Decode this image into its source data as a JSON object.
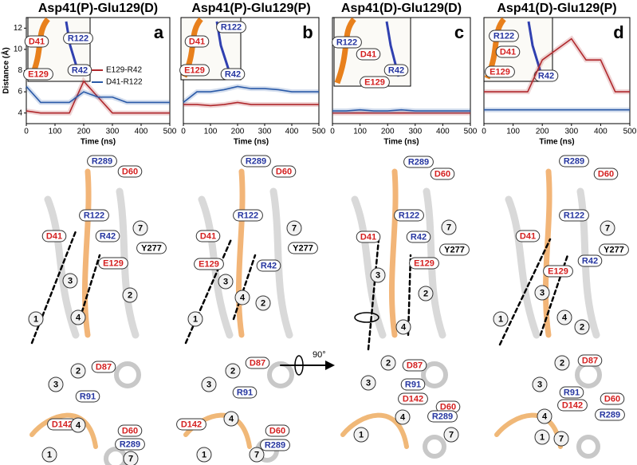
{
  "chart_data": [
    {
      "type": "line",
      "title": "Asp41(P)-Glu129(D)",
      "panel_label": "a",
      "xlabel": "Time (ns)",
      "ylabel": "Distance (Å)",
      "x": [
        0,
        50,
        100,
        150,
        200,
        250,
        300,
        350,
        400,
        450,
        500
      ],
      "series": [
        {
          "name": "E129-R42",
          "color": "#b0282c",
          "values": [
            4.2,
            4,
            4,
            4,
            7,
            5.5,
            4,
            4,
            4,
            4,
            4
          ]
        },
        {
          "name": "D41-R122",
          "color": "#2a5aa8",
          "values": [
            6.5,
            5,
            5,
            5,
            6,
            5.5,
            5.5,
            5,
            5,
            5,
            5
          ]
        }
      ],
      "xlim": [
        0,
        500
      ],
      "xticks": [
        0,
        100,
        200,
        300,
        400,
        500
      ],
      "ylim": [
        3,
        13
      ],
      "yticks": [
        4,
        6,
        8,
        10,
        12
      ],
      "legend": "right"
    },
    {
      "type": "line",
      "title": "Asp41(P)-Glu129(P)",
      "panel_label": "b",
      "xlabel": "Time (ns)",
      "x": [
        0,
        50,
        100,
        150,
        200,
        250,
        300,
        350,
        400,
        450,
        500
      ],
      "series": [
        {
          "color": "#b0282c",
          "values": [
            4.8,
            4.8,
            4.7,
            4.8,
            5,
            4.8,
            4.8,
            4.8,
            4.8,
            4.8,
            4.8
          ]
        },
        {
          "color": "#2a5aa8",
          "values": [
            5,
            6,
            6,
            6.2,
            6.5,
            6.3,
            6.3,
            6.2,
            6,
            6,
            6
          ]
        }
      ],
      "xlim": [
        0,
        500
      ],
      "xticks": [
        0,
        100,
        200,
        300,
        400,
        500
      ],
      "ylim": [
        3,
        13
      ]
    },
    {
      "type": "line",
      "title": "Asp41(D)-Glu129(D)",
      "panel_label": "c",
      "xlabel": "Time (ns)",
      "x": [
        0,
        50,
        100,
        150,
        200,
        250,
        300,
        350,
        400,
        450,
        500
      ],
      "series": [
        {
          "color": "#b0282c",
          "values": [
            4,
            4,
            4,
            4,
            4,
            4,
            4,
            4,
            4,
            4,
            4
          ]
        },
        {
          "color": "#2a5aa8",
          "values": [
            4.2,
            4.2,
            4.3,
            4.2,
            4.2,
            4.3,
            4.2,
            4.2,
            4.2,
            4.2,
            4.2
          ]
        }
      ],
      "xlim": [
        0,
        500
      ],
      "xticks": [
        0,
        100,
        200,
        300,
        400,
        500
      ],
      "ylim": [
        3,
        13
      ]
    },
    {
      "type": "line",
      "title": "Asp41(D)-Glu129(P)",
      "panel_label": "d",
      "xlabel": "Time (ns)",
      "x": [
        0,
        50,
        100,
        150,
        200,
        250,
        300,
        350,
        400,
        450,
        500
      ],
      "series": [
        {
          "color": "#b0282c",
          "values": [
            6,
            6,
            6,
            6,
            9,
            10,
            11,
            9,
            9,
            6,
            6
          ]
        },
        {
          "color": "#2a5aa8",
          "values": [
            4.3,
            4.3,
            4.3,
            4.3,
            4.3,
            4.3,
            4.3,
            4.3,
            4.3,
            4.3,
            4.3
          ]
        }
      ],
      "xlim": [
        0,
        500
      ],
      "xticks": [
        0,
        100,
        200,
        300,
        400,
        500
      ],
      "ylim": [
        3,
        13
      ]
    }
  ],
  "structures": [
    {
      "inset": [
        "R122",
        "D41",
        "R42",
        "E129"
      ],
      "side": [
        "R289",
        "D60",
        "R122",
        "7",
        "D41",
        "R42",
        "Y277",
        "E129",
        "3",
        "2",
        "4",
        "1"
      ],
      "top": [
        "2",
        "D87",
        "3",
        "R91",
        "D142",
        "4",
        "D60",
        "R289",
        "1",
        "7"
      ]
    },
    {
      "inset": [
        "R122",
        "D41",
        "E129",
        "R42"
      ],
      "side": [
        "R289",
        "D60",
        "R122",
        "7",
        "D41",
        "Y277",
        "E129",
        "R42",
        "3",
        "4",
        "2",
        "1"
      ],
      "top": [
        "2",
        "D87",
        "3",
        "R91",
        "D142",
        "4",
        "D60",
        "R289",
        "1",
        "7"
      ]
    },
    {
      "inset": [
        "R122",
        "D41",
        "R42",
        "E129"
      ],
      "side": [
        "R289",
        "D60",
        "R122",
        "7",
        "D41",
        "R42",
        "Y277",
        "E129",
        "3",
        "2",
        "4"
      ],
      "top": [
        "2",
        "D87",
        "3",
        "R91",
        "D142",
        "4",
        "D60",
        "R289",
        "1",
        "7"
      ]
    },
    {
      "inset": [
        "R122",
        "D41",
        "E129",
        "R42"
      ],
      "side": [
        "R289",
        "D60",
        "R122",
        "7",
        "D41",
        "Y277",
        "R42",
        "E129",
        "3",
        "4",
        "2",
        "1"
      ],
      "top": [
        "2",
        "D87",
        "3",
        "R91",
        "D142",
        "4",
        "D60",
        "R289",
        "1",
        "7"
      ]
    }
  ],
  "rotation": "90°"
}
